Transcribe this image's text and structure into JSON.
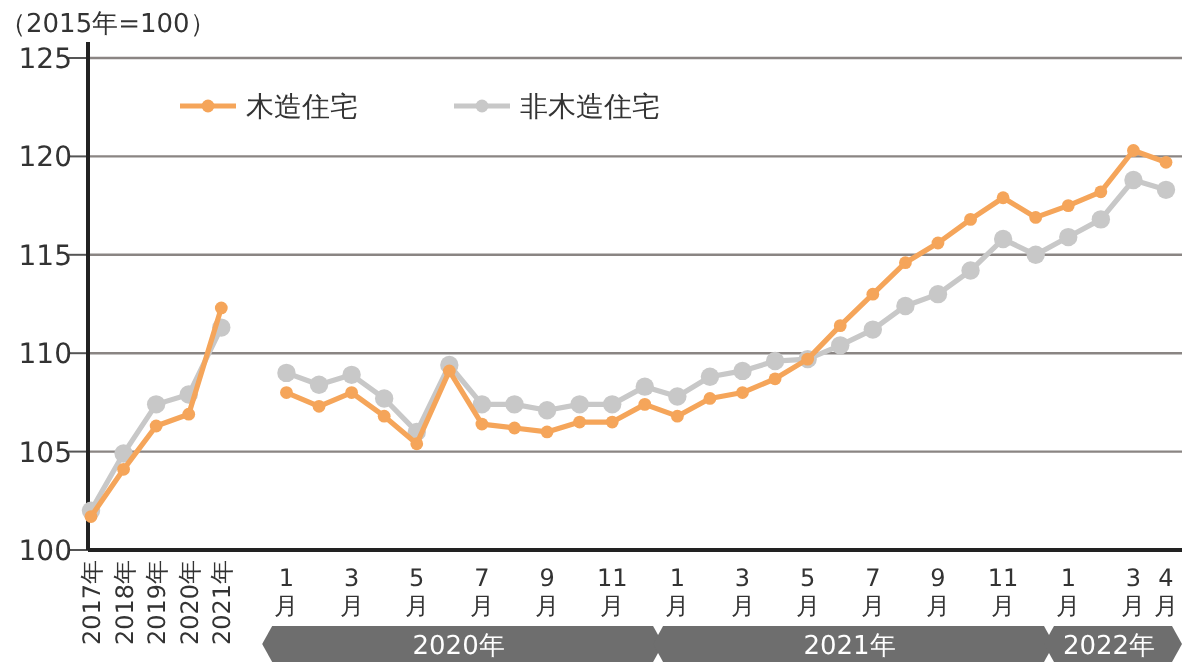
{
  "chart_data": {
    "type": "line",
    "ylabel": "（2015年=100）",
    "categories": [
      "2017年",
      "2018年",
      "2019年",
      "2020年",
      "2021年",
      null,
      "1月",
      null,
      "3月",
      null,
      "5月",
      null,
      "7月",
      null,
      "9月",
      null,
      "11月",
      null,
      "1月",
      null,
      "3月",
      null,
      "5月",
      null,
      "7月",
      null,
      "9月",
      null,
      "11月",
      null,
      "1月",
      null,
      "3月",
      "4月"
    ],
    "series": [
      {
        "name": "木造住宅",
        "color": "#f5a55a",
        "values": [
          101.7,
          104.1,
          106.3,
          106.9,
          112.3,
          null,
          108.0,
          107.3,
          108.0,
          106.8,
          105.4,
          109.1,
          106.4,
          106.2,
          106.0,
          106.5,
          106.5,
          107.4,
          106.8,
          107.7,
          108.0,
          108.7,
          109.7,
          111.4,
          113.0,
          114.6,
          115.6,
          116.8,
          117.9,
          116.9,
          117.5,
          118.2,
          120.3,
          119.7
        ]
      },
      {
        "name": "非木造住宅",
        "color": "#c8c8c8",
        "values": [
          102.0,
          104.9,
          107.4,
          107.9,
          111.3,
          null,
          109.0,
          108.4,
          108.9,
          107.7,
          106.0,
          109.4,
          107.4,
          107.4,
          107.1,
          107.4,
          107.4,
          108.3,
          107.8,
          108.8,
          109.1,
          109.6,
          109.7,
          110.4,
          111.2,
          112.4,
          113.0,
          114.2,
          115.8,
          115.0,
          115.9,
          116.8,
          118.8,
          118.3
        ]
      }
    ],
    "ylim": [
      100,
      125
    ],
    "yticks": [
      100,
      105,
      110,
      115,
      120,
      125
    ],
    "grid": "y",
    "legend": "top left",
    "marker": "circle",
    "annotations": [
      "2020年",
      "2021年",
      "2022年"
    ]
  }
}
